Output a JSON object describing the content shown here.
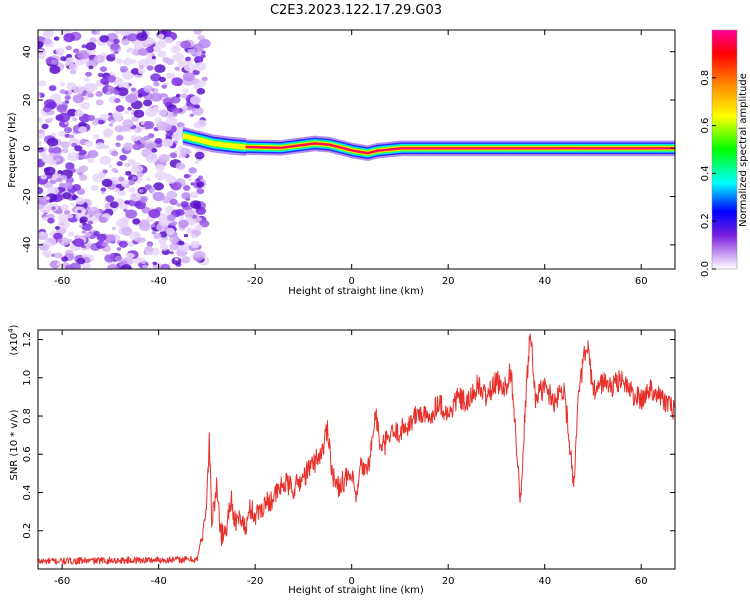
{
  "title": "C2E3.2023.122.17.29.G03",
  "chart_data": [
    {
      "type": "heatmap",
      "xlabel": "Height of straight line (km)",
      "ylabel": "Frequency (Hz)",
      "xlim": [
        -65,
        67
      ],
      "ylim": [
        -50,
        49
      ],
      "xticks": [
        -60,
        -40,
        -20,
        0,
        20,
        40,
        60
      ],
      "yticks": [
        -40,
        -20,
        0,
        20,
        40
      ],
      "colorbar": {
        "label": "Normalized spectral amplitude",
        "range": [
          0,
          1
        ],
        "ticks": [
          "0.0",
          "0.2",
          "0.4",
          "0.6",
          "0.8"
        ],
        "colors": [
          "#ffffff",
          "#8a2be2",
          "#0000ff",
          "#00ffff",
          "#00ff00",
          "#ffff00",
          "#ff8000",
          "#ff0000",
          "#ff0099"
        ]
      },
      "noise_region_x": [
        -65,
        -32
      ],
      "signal_band_center_hz": [
        [
          -35,
          5
        ],
        [
          -33,
          4
        ],
        [
          -31,
          3
        ],
        [
          -29,
          2
        ],
        [
          -27,
          1.5
        ],
        [
          -25,
          1
        ],
        [
          -22,
          0.5
        ],
        [
          -15,
          0.2
        ],
        [
          -8,
          2
        ],
        [
          -5,
          1.5
        ],
        [
          -2,
          0
        ],
        [
          0,
          -1
        ],
        [
          3,
          -2
        ],
        [
          5,
          -1
        ],
        [
          10,
          0
        ],
        [
          20,
          0
        ],
        [
          40,
          0
        ],
        [
          67,
          0
        ]
      ]
    },
    {
      "type": "line",
      "xlabel": "Height of straight line (km)",
      "ylabel": "SNR (10 * v/v)",
      "multiplier": "(x10",
      "multiplier_exp": "4",
      "multiplier_close": ")",
      "xlim": [
        -65,
        67
      ],
      "ylim": [
        0,
        1.25
      ],
      "xticks": [
        -60,
        -40,
        -20,
        0,
        20,
        40,
        60
      ],
      "yticks": [
        "0.2",
        "0.4",
        "0.6",
        "0.8",
        "1.0",
        "1.2"
      ],
      "color": "#e8302a",
      "x": [
        -65,
        -32,
        -31,
        -30,
        -29.5,
        -29,
        -28,
        -27,
        -26,
        -25,
        -24,
        -23,
        -22,
        -21,
        -20,
        -18,
        -16,
        -14,
        -12,
        -10,
        -8,
        -6,
        -5,
        -4,
        -3,
        -2,
        0,
        1,
        2,
        3,
        4,
        5,
        6,
        8,
        10,
        12,
        14,
        16,
        18,
        20,
        22,
        24,
        26,
        28,
        30,
        32,
        33,
        34,
        35,
        36,
        37,
        38,
        40,
        42,
        44,
        45,
        46,
        47,
        48,
        49,
        50,
        52,
        54,
        56,
        58,
        60,
        62,
        64,
        66,
        67
      ],
      "y": [
        0.04,
        0.05,
        0.18,
        0.35,
        0.68,
        0.25,
        0.42,
        0.18,
        0.2,
        0.38,
        0.22,
        0.28,
        0.2,
        0.32,
        0.28,
        0.34,
        0.38,
        0.45,
        0.42,
        0.48,
        0.55,
        0.62,
        0.75,
        0.5,
        0.42,
        0.46,
        0.48,
        0.36,
        0.55,
        0.5,
        0.62,
        0.82,
        0.62,
        0.7,
        0.72,
        0.76,
        0.82,
        0.78,
        0.88,
        0.8,
        0.9,
        0.86,
        0.96,
        0.9,
        0.98,
        0.95,
        1.05,
        0.7,
        0.34,
        0.85,
        1.25,
        0.9,
        0.95,
        0.88,
        0.95,
        0.7,
        0.45,
        0.88,
        1.1,
        1.15,
        0.92,
        0.98,
        0.95,
        1.0,
        0.92,
        0.88,
        0.95,
        0.9,
        0.85,
        0.82
      ]
    }
  ]
}
